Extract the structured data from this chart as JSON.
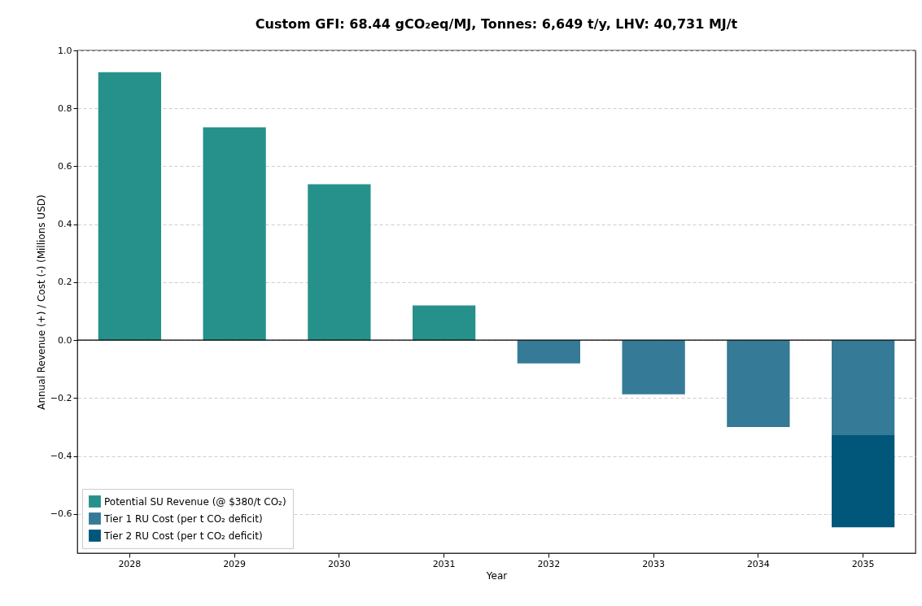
{
  "chart_data": {
    "type": "bar",
    "title": "Custom GFI: 68.44 gCO₂eq/MJ, Tonnes: 6,649 t/y, LHV: 40,731 MJ/t",
    "xlabel": "Year",
    "ylabel": "Annual Revenue (+) / Cost (-) (Millions USD)",
    "categories": [
      "2028",
      "2029",
      "2030",
      "2031",
      "2032",
      "2033",
      "2034",
      "2035"
    ],
    "series": [
      {
        "name": "Potential SU Revenue (@ $380/t CO₂)",
        "color": "#26918a",
        "values": [
          0.925,
          0.735,
          0.538,
          0.12,
          null,
          null,
          null,
          null
        ]
      },
      {
        "name": "Tier 1 RU Cost (per t CO₂ deficit)",
        "color": "#357a96",
        "values": [
          null,
          null,
          null,
          null,
          -0.08,
          -0.187,
          -0.3,
          -0.326
        ]
      },
      {
        "name": "Tier 2 RU Cost (per t CO₂ deficit)",
        "color": "#00577a",
        "values": [
          null,
          null,
          null,
          null,
          null,
          null,
          null,
          -0.32
        ]
      }
    ],
    "stacked": true,
    "ylim": [
      -0.735,
      1.0
    ],
    "yticks": [
      {
        "value": -0.6,
        "label": "−0.6"
      },
      {
        "value": -0.4,
        "label": "−0.4"
      },
      {
        "value": -0.2,
        "label": "−0.2"
      },
      {
        "value": 0,
        "label": "0.0"
      },
      {
        "value": 0.2,
        "label": "0.2"
      },
      {
        "value": 0.4,
        "label": "0.4"
      },
      {
        "value": 0.6,
        "label": "0.6"
      },
      {
        "value": 0.8,
        "label": "0.8"
      },
      {
        "value": 1,
        "label": "1.0"
      }
    ],
    "ref_lines": [
      {
        "axis": "y",
        "value": 0,
        "color": "#000000"
      }
    ],
    "grid": "y",
    "legend": "bottom left"
  }
}
